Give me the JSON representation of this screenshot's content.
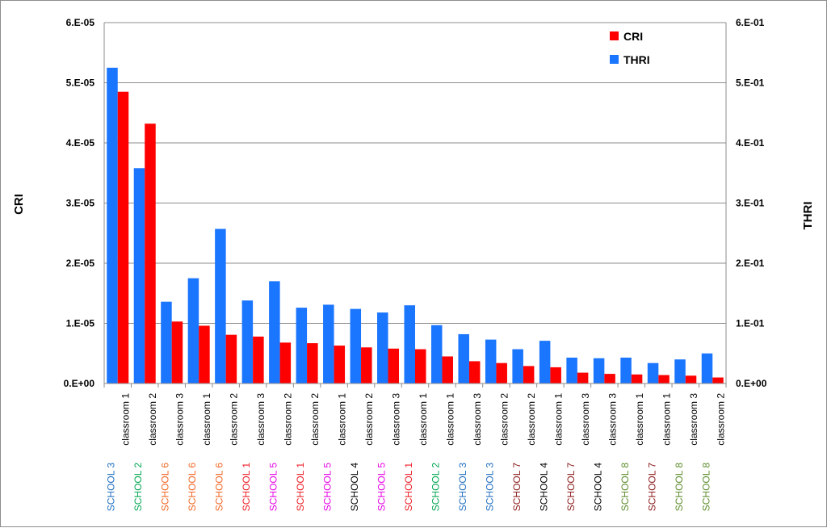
{
  "chart_data": {
    "type": "bar",
    "title": "",
    "grid": true,
    "legend_position": "top-right",
    "y_left": {
      "label": "CRI",
      "lim": [
        0,
        6e-05
      ],
      "ticks": [
        "0.E+00",
        "1.E-05",
        "2.E-05",
        "3.E-05",
        "4.E-05",
        "5.E-05",
        "6.E-05"
      ]
    },
    "y_right": {
      "label": "THRI",
      "lim": [
        0,
        0.6
      ],
      "ticks": [
        "0.E+00",
        "1.E-01",
        "2.E-01",
        "3.E-01",
        "4.E-01",
        "5.E-01",
        "6.E-01"
      ]
    },
    "categories": [
      {
        "school": "SCHOOL 3",
        "room": "classroom 1",
        "school_color": "#1f6fbf"
      },
      {
        "school": "SCHOOL 2",
        "room": "classroom 2",
        "school_color": "#00a651"
      },
      {
        "school": "SCHOOL 6",
        "room": "classroom 3",
        "school_color": "#f26522"
      },
      {
        "school": "SCHOOL 6",
        "room": "classroom 1",
        "school_color": "#f26522"
      },
      {
        "school": "SCHOOL 6",
        "room": "classroom 2",
        "school_color": "#f26522"
      },
      {
        "school": "SCHOOL 1",
        "room": "classroom 3",
        "school_color": "#ed1c24"
      },
      {
        "school": "SCHOOL 5",
        "room": "classroom 2",
        "school_color": "#e600e6"
      },
      {
        "school": "SCHOOL 1",
        "room": "classroom 2",
        "school_color": "#ed1c24"
      },
      {
        "school": "SCHOOL 5",
        "room": "classroom 1",
        "school_color": "#e600e6"
      },
      {
        "school": "SCHOOL 4",
        "room": "classroom 2",
        "school_color": "#000000"
      },
      {
        "school": "SCHOOL 5",
        "room": "classroom 3",
        "school_color": "#e600e6"
      },
      {
        "school": "SCHOOL 1",
        "room": "classroom 1",
        "school_color": "#ed1c24"
      },
      {
        "school": "SCHOOL 2",
        "room": "classroom 1",
        "school_color": "#00a651"
      },
      {
        "school": "SCHOOL 3",
        "room": "classroom 3",
        "school_color": "#1f6fbf"
      },
      {
        "school": "SCHOOL 3",
        "room": "classroom 2",
        "school_color": "#1f6fbf"
      },
      {
        "school": "SCHOOL 7",
        "room": "classroom 2",
        "school_color": "#8b1a1a"
      },
      {
        "school": "SCHOOL 4",
        "room": "classroom 1",
        "school_color": "#000000"
      },
      {
        "school": "SCHOOL 7",
        "room": "classroom 3",
        "school_color": "#8b1a1a"
      },
      {
        "school": "SCHOOL 4",
        "room": "classroom 3",
        "school_color": "#000000"
      },
      {
        "school": "SCHOOL 8",
        "room": "classroom 1",
        "school_color": "#5b8c2a"
      },
      {
        "school": "SCHOOL 7",
        "room": "classroom 1",
        "school_color": "#8b1a1a"
      },
      {
        "school": "SCHOOL 8",
        "room": "classroom 3",
        "school_color": "#5b8c2a"
      },
      {
        "school": "SCHOOL 8",
        "room": "classroom 2",
        "school_color": "#5b8c2a"
      }
    ],
    "series": [
      {
        "name": "CRI",
        "axis": "left",
        "color": "#ff0000",
        "values": [
          4.85e-05,
          4.32e-05,
          1.03e-05,
          9.6e-06,
          8.1e-06,
          7.8e-06,
          6.8e-06,
          6.7e-06,
          6.3e-06,
          6e-06,
          5.8e-06,
          5.7e-06,
          4.5e-06,
          3.7e-06,
          3.4e-06,
          2.9e-06,
          2.7e-06,
          1.8e-06,
          1.6e-06,
          1.5e-06,
          1.4e-06,
          1.3e-06,
          1e-06
        ]
      },
      {
        "name": "THRI",
        "axis": "right",
        "color": "#1a75ff",
        "values": [
          0.525,
          0.358,
          0.136,
          0.175,
          0.257,
          0.138,
          0.17,
          0.126,
          0.131,
          0.124,
          0.118,
          0.13,
          0.097,
          0.082,
          0.073,
          0.057,
          0.071,
          0.043,
          0.042,
          0.043,
          0.034,
          0.04,
          0.05
        ]
      }
    ]
  }
}
